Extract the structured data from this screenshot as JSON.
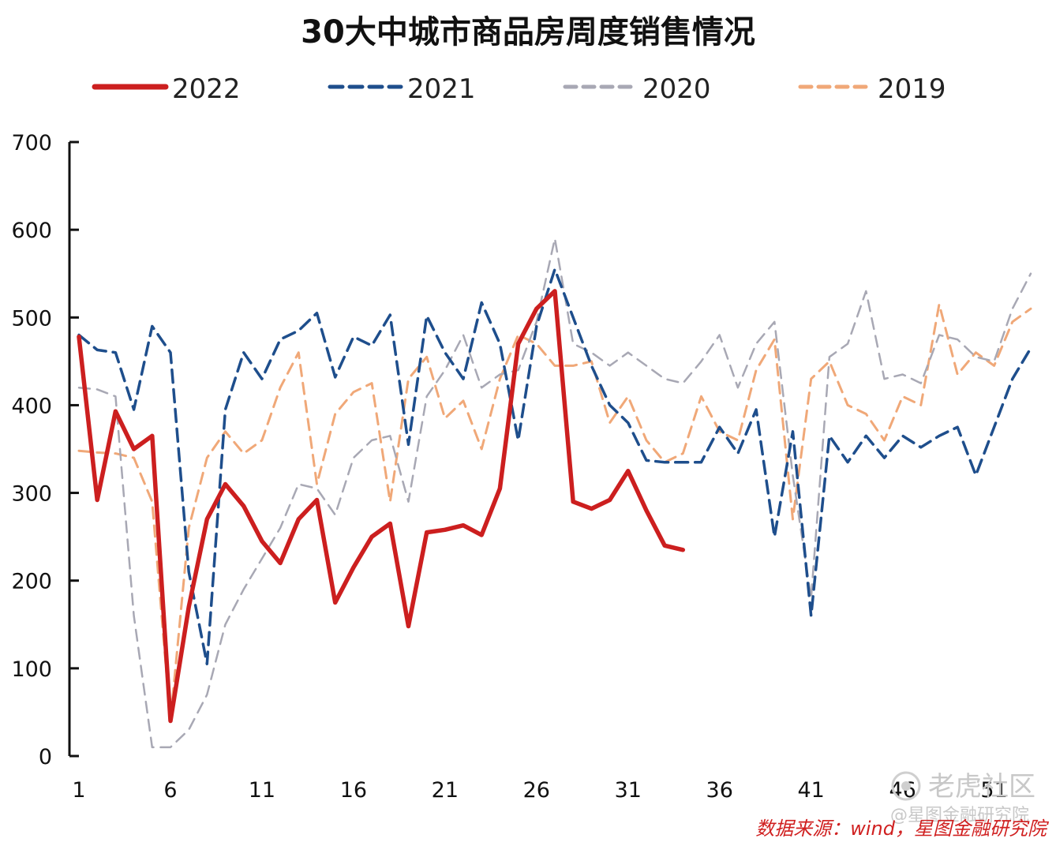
{
  "chart_data": {
    "type": "line",
    "title": "30大中城市商品房周度销售情况",
    "ylim": [
      0,
      700
    ],
    "yticks": [
      0,
      100,
      200,
      300,
      400,
      500,
      600,
      700
    ],
    "xlim": [
      1,
      53
    ],
    "xticks": [
      1,
      6,
      11,
      16,
      21,
      26,
      31,
      36,
      41,
      46,
      51
    ],
    "series": [
      {
        "name": "2019",
        "color": "#f0a878",
        "dash": "14 9",
        "width": 3,
        "x": [
          1,
          2,
          3,
          4,
          5,
          6,
          7,
          8,
          9,
          10,
          11,
          12,
          13,
          14,
          15,
          16,
          17,
          18,
          19,
          20,
          21,
          22,
          23,
          24,
          25,
          26,
          27,
          28,
          29,
          30,
          31,
          32,
          33,
          34,
          35,
          36,
          37,
          38,
          39,
          40,
          41,
          42,
          43,
          44,
          45,
          46,
          47,
          48,
          49,
          50,
          51,
          52,
          53
        ],
        "values": [
          348,
          346,
          345,
          340,
          290,
          40,
          260,
          340,
          370,
          345,
          360,
          420,
          460,
          310,
          390,
          415,
          425,
          290,
          430,
          455,
          385,
          405,
          350,
          430,
          480,
          470,
          445,
          445,
          450,
          380,
          410,
          360,
          335,
          345,
          410,
          370,
          360,
          440,
          475,
          270,
          430,
          450,
          400,
          390,
          360,
          410,
          400,
          515,
          435,
          460,
          445,
          495,
          510
        ]
      },
      {
        "name": "2020",
        "color": "#a8a8b4",
        "dash": "14 9",
        "width": 2.5,
        "x": [
          1,
          2,
          3,
          4,
          5,
          6,
          7,
          8,
          9,
          10,
          11,
          12,
          13,
          14,
          15,
          16,
          17,
          18,
          19,
          20,
          21,
          22,
          23,
          24,
          25,
          26,
          27,
          28,
          29,
          30,
          31,
          32,
          33,
          34,
          35,
          36,
          37,
          38,
          39,
          40,
          41,
          42,
          43,
          44,
          45,
          46,
          47,
          48,
          49,
          50,
          51,
          52,
          53
        ],
        "values": [
          420,
          418,
          410,
          160,
          10,
          10,
          30,
          70,
          150,
          190,
          225,
          260,
          310,
          305,
          275,
          340,
          360,
          365,
          290,
          410,
          440,
          480,
          420,
          435,
          440,
          495,
          590,
          470,
          460,
          445,
          460,
          445,
          430,
          425,
          450,
          480,
          420,
          470,
          495,
          320,
          180,
          455,
          470,
          530,
          430,
          435,
          425,
          480,
          475,
          455,
          450,
          510,
          550
        ]
      },
      {
        "name": "2021",
        "color": "#1e4e8c",
        "dash": "16 9",
        "width": 3.5,
        "x": [
          1,
          2,
          3,
          4,
          5,
          6,
          7,
          8,
          9,
          10,
          11,
          12,
          13,
          14,
          15,
          16,
          17,
          18,
          19,
          20,
          21,
          22,
          23,
          24,
          25,
          26,
          27,
          28,
          29,
          30,
          31,
          32,
          33,
          34,
          35,
          36,
          37,
          38,
          39,
          40,
          41,
          42,
          43,
          44,
          45,
          46,
          47,
          48,
          49,
          50,
          51,
          52,
          53
        ],
        "values": [
          480,
          463,
          460,
          395,
          490,
          460,
          210,
          105,
          395,
          460,
          430,
          475,
          485,
          505,
          432,
          478,
          468,
          503,
          355,
          502,
          460,
          430,
          517,
          470,
          360,
          490,
          555,
          500,
          445,
          400,
          380,
          337,
          335,
          335,
          335,
          375,
          345,
          395,
          250,
          370,
          160,
          365,
          335,
          365,
          340,
          365,
          352,
          365,
          375,
          320,
          375,
          430,
          465
        ]
      },
      {
        "name": "2022",
        "color": "#cc1f1f",
        "dash": "",
        "width": 5.5,
        "x": [
          1,
          2,
          3,
          4,
          5,
          6,
          7,
          8,
          9,
          10,
          11,
          12,
          13,
          14,
          15,
          16,
          17,
          18,
          19,
          20,
          21,
          22,
          23,
          24,
          25,
          26,
          27,
          28,
          29,
          30,
          31,
          32,
          33,
          34
        ],
        "values": [
          478,
          292,
          393,
          350,
          365,
          40,
          170,
          270,
          310,
          285,
          245,
          220,
          270,
          292,
          175,
          215,
          250,
          265,
          148,
          255,
          258,
          263,
          252,
          305,
          470,
          510,
          530,
          290,
          282,
          292,
          325,
          280,
          240,
          235
        ]
      }
    ],
    "legend": {
      "placement": "top"
    },
    "grid": false
  },
  "source_text": "数据来源：wind，星图金融研究院",
  "watermark": {
    "brand": "老虎社区",
    "handle": "@星图金融研究院"
  }
}
